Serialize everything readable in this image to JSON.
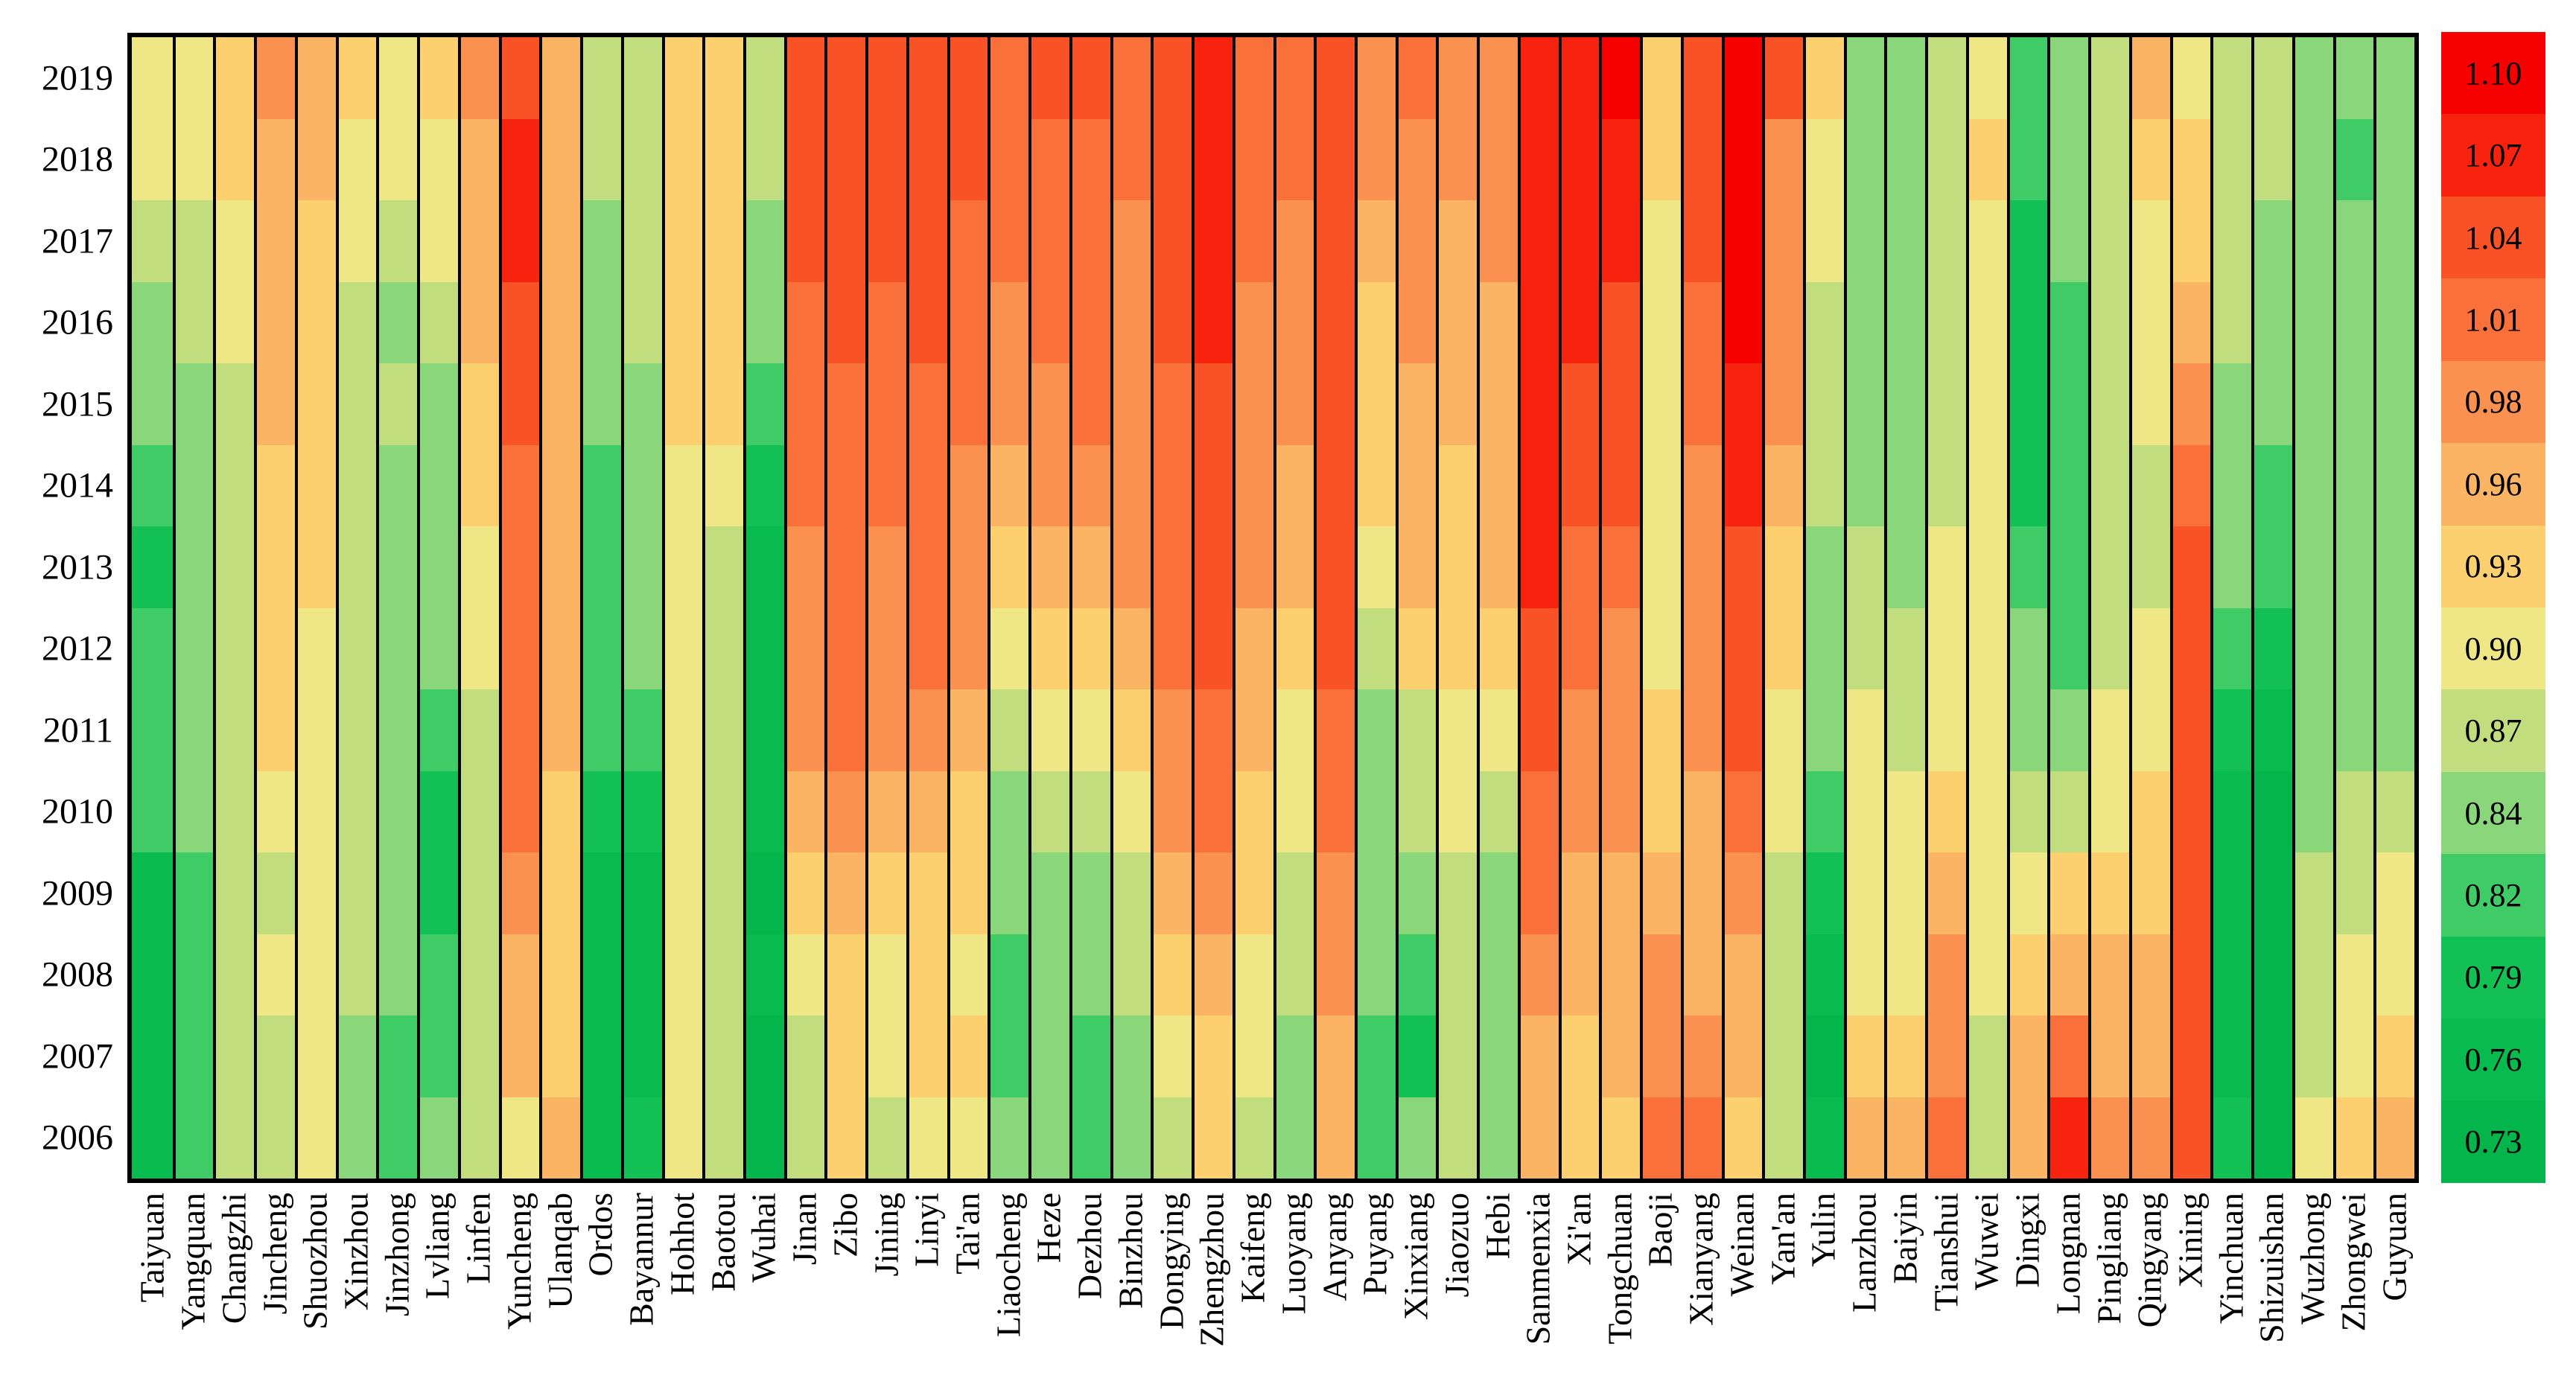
{
  "chart_data": {
    "type": "heatmap",
    "title": "",
    "xlabel": "",
    "ylabel": "",
    "grid_line_color": "#000000",
    "background_color": "#ffffff",
    "legend_position": "right",
    "years_top_to_bottom": [
      "2019",
      "2018",
      "2017",
      "2016",
      "2015",
      "2014",
      "2013",
      "2012",
      "2011",
      "2010",
      "2009",
      "2008",
      "2007",
      "2006"
    ],
    "colorbar": {
      "tick_labels": [
        "1.10",
        "1.07",
        "1.04",
        "1.01",
        "0.98",
        "0.96",
        "0.93",
        "0.90",
        "0.87",
        "0.84",
        "0.82",
        "0.79",
        "0.76",
        "0.73"
      ],
      "values": [
        1.1,
        1.07,
        1.04,
        1.01,
        0.98,
        0.96,
        0.93,
        0.9,
        0.87,
        0.84,
        0.82,
        0.79,
        0.76,
        0.73
      ],
      "colors": [
        "#f60000",
        "#f7230e",
        "#f85226",
        "#f9703a",
        "#fa9150",
        "#fbb464",
        "#fcd06e",
        "#efe786",
        "#c2dd7d",
        "#8ad67b",
        "#3fcb66",
        "#12c054",
        "#08bb4e",
        "#03b54a"
      ]
    },
    "cities": [
      {
        "name": "Taiyuan",
        "values": [
          0.9,
          0.9,
          0.87,
          0.84,
          0.84,
          0.82,
          0.79,
          0.82,
          0.82,
          0.82,
          0.76,
          0.76,
          0.76,
          0.76
        ]
      },
      {
        "name": "Yangquan",
        "values": [
          0.9,
          0.9,
          0.87,
          0.87,
          0.84,
          0.84,
          0.84,
          0.84,
          0.84,
          0.84,
          0.82,
          0.82,
          0.82,
          0.82
        ]
      },
      {
        "name": "Changzhi",
        "values": [
          0.93,
          0.93,
          0.9,
          0.9,
          0.87,
          0.87,
          0.87,
          0.87,
          0.87,
          0.87,
          0.87,
          0.87,
          0.87,
          0.87
        ]
      },
      {
        "name": "Jincheng",
        "values": [
          0.98,
          0.96,
          0.96,
          0.96,
          0.96,
          0.93,
          0.93,
          0.93,
          0.93,
          0.9,
          0.87,
          0.9,
          0.87,
          0.87
        ]
      },
      {
        "name": "Shuozhou",
        "values": [
          0.96,
          0.96,
          0.93,
          0.93,
          0.93,
          0.93,
          0.93,
          0.9,
          0.9,
          0.9,
          0.9,
          0.9,
          0.9,
          0.9
        ]
      },
      {
        "name": "Xinzhou",
        "values": [
          0.93,
          0.9,
          0.9,
          0.87,
          0.87,
          0.87,
          0.87,
          0.87,
          0.87,
          0.87,
          0.87,
          0.87,
          0.84,
          0.84
        ]
      },
      {
        "name": "Jinzhong",
        "values": [
          0.9,
          0.9,
          0.87,
          0.84,
          0.87,
          0.84,
          0.84,
          0.84,
          0.84,
          0.84,
          0.84,
          0.84,
          0.82,
          0.82
        ]
      },
      {
        "name": "Lvliang",
        "values": [
          0.93,
          0.9,
          0.9,
          0.87,
          0.84,
          0.84,
          0.84,
          0.84,
          0.82,
          0.79,
          0.79,
          0.82,
          0.82,
          0.84
        ]
      },
      {
        "name": "Linfen",
        "values": [
          0.98,
          0.96,
          0.96,
          0.96,
          0.93,
          0.93,
          0.9,
          0.9,
          0.87,
          0.87,
          0.87,
          0.87,
          0.87,
          0.87
        ]
      },
      {
        "name": "Yuncheng",
        "values": [
          1.04,
          1.07,
          1.07,
          1.04,
          1.04,
          1.01,
          1.01,
          1.01,
          1.01,
          1.01,
          0.98,
          0.96,
          0.96,
          0.9
        ]
      },
      {
        "name": "Ulanqab",
        "values": [
          0.96,
          0.96,
          0.96,
          0.96,
          0.96,
          0.96,
          0.96,
          0.96,
          0.96,
          0.93,
          0.93,
          0.93,
          0.93,
          0.96
        ]
      },
      {
        "name": "Ordos",
        "values": [
          0.87,
          0.87,
          0.84,
          0.84,
          0.84,
          0.82,
          0.82,
          0.82,
          0.82,
          0.79,
          0.76,
          0.76,
          0.76,
          0.76
        ]
      },
      {
        "name": "Bayannur",
        "values": [
          0.87,
          0.87,
          0.87,
          0.87,
          0.84,
          0.84,
          0.84,
          0.84,
          0.82,
          0.79,
          0.76,
          0.76,
          0.76,
          0.79
        ]
      },
      {
        "name": "Hohhot",
        "values": [
          0.93,
          0.93,
          0.93,
          0.93,
          0.93,
          0.9,
          0.9,
          0.9,
          0.9,
          0.9,
          0.9,
          0.9,
          0.9,
          0.9
        ]
      },
      {
        "name": "Baotou",
        "values": [
          0.93,
          0.93,
          0.93,
          0.93,
          0.93,
          0.9,
          0.87,
          0.87,
          0.87,
          0.87,
          0.87,
          0.87,
          0.87,
          0.87
        ]
      },
      {
        "name": "Wuhai",
        "values": [
          0.87,
          0.87,
          0.84,
          0.84,
          0.82,
          0.79,
          0.76,
          0.76,
          0.76,
          0.76,
          0.73,
          0.76,
          0.73,
          0.73
        ]
      },
      {
        "name": "Jinan",
        "values": [
          1.04,
          1.04,
          1.04,
          1.01,
          1.01,
          1.01,
          0.98,
          0.98,
          0.98,
          0.96,
          0.93,
          0.9,
          0.87,
          0.87
        ]
      },
      {
        "name": "Zibo",
        "values": [
          1.04,
          1.04,
          1.04,
          1.04,
          1.01,
          1.01,
          1.01,
          1.01,
          1.01,
          0.98,
          0.96,
          0.93,
          0.93,
          0.93
        ]
      },
      {
        "name": "Jining",
        "values": [
          1.04,
          1.04,
          1.04,
          1.01,
          1.01,
          1.01,
          0.98,
          0.98,
          0.98,
          0.96,
          0.93,
          0.9,
          0.9,
          0.87
        ]
      },
      {
        "name": "Linyi",
        "values": [
          1.04,
          1.04,
          1.04,
          1.04,
          1.01,
          1.01,
          1.01,
          1.01,
          0.98,
          0.96,
          0.93,
          0.93,
          0.93,
          0.9
        ]
      },
      {
        "name": "Tai'an",
        "values": [
          1.04,
          1.04,
          1.01,
          1.01,
          1.01,
          0.98,
          0.98,
          0.98,
          0.96,
          0.93,
          0.93,
          0.9,
          0.93,
          0.9
        ]
      },
      {
        "name": "Liaocheng",
        "values": [
          1.01,
          1.01,
          1.01,
          0.98,
          0.98,
          0.96,
          0.93,
          0.9,
          0.87,
          0.84,
          0.84,
          0.82,
          0.82,
          0.84
        ]
      },
      {
        "name": "Heze",
        "values": [
          1.04,
          1.01,
          1.01,
          1.01,
          0.98,
          0.98,
          0.96,
          0.93,
          0.9,
          0.87,
          0.84,
          0.84,
          0.84,
          0.84
        ]
      },
      {
        "name": "Dezhou",
        "values": [
          1.04,
          1.01,
          1.01,
          1.01,
          1.01,
          0.98,
          0.96,
          0.93,
          0.9,
          0.87,
          0.84,
          0.84,
          0.82,
          0.82
        ]
      },
      {
        "name": "Binzhou",
        "values": [
          1.01,
          1.01,
          0.98,
          0.98,
          0.98,
          0.98,
          0.98,
          0.96,
          0.93,
          0.9,
          0.87,
          0.87,
          0.84,
          0.84
        ]
      },
      {
        "name": "Dongying",
        "values": [
          1.04,
          1.04,
          1.04,
          1.04,
          1.01,
          1.01,
          1.01,
          1.01,
          0.98,
          0.98,
          0.96,
          0.93,
          0.9,
          0.87
        ]
      },
      {
        "name": "Zhengzhou",
        "values": [
          1.07,
          1.07,
          1.07,
          1.07,
          1.04,
          1.04,
          1.04,
          1.04,
          1.01,
          1.01,
          0.98,
          0.96,
          0.93,
          0.93
        ]
      },
      {
        "name": "Kaifeng",
        "values": [
          1.01,
          1.01,
          1.01,
          0.98,
          0.98,
          0.98,
          0.98,
          0.96,
          0.96,
          0.93,
          0.93,
          0.9,
          0.9,
          0.87
        ]
      },
      {
        "name": "Luoyang",
        "values": [
          1.01,
          1.01,
          0.98,
          0.98,
          0.98,
          0.96,
          0.96,
          0.93,
          0.9,
          0.9,
          0.87,
          0.87,
          0.84,
          0.84
        ]
      },
      {
        "name": "Anyang",
        "values": [
          1.04,
          1.04,
          1.04,
          1.04,
          1.04,
          1.04,
          1.04,
          1.04,
          1.01,
          1.01,
          0.98,
          0.98,
          0.96,
          0.96
        ]
      },
      {
        "name": "Puyang",
        "values": [
          0.98,
          0.98,
          0.96,
          0.93,
          0.93,
          0.93,
          0.9,
          0.87,
          0.84,
          0.84,
          0.84,
          0.84,
          0.82,
          0.82
        ]
      },
      {
        "name": "Xinxiang",
        "values": [
          1.01,
          0.98,
          0.98,
          0.98,
          0.96,
          0.96,
          0.96,
          0.93,
          0.87,
          0.87,
          0.84,
          0.82,
          0.79,
          0.84
        ]
      },
      {
        "name": "Jiaozuo",
        "values": [
          0.98,
          0.98,
          0.96,
          0.96,
          0.96,
          0.93,
          0.93,
          0.93,
          0.9,
          0.9,
          0.87,
          0.87,
          0.87,
          0.87
        ]
      },
      {
        "name": "Hebi",
        "values": [
          0.98,
          0.98,
          0.98,
          0.96,
          0.96,
          0.96,
          0.96,
          0.93,
          0.9,
          0.87,
          0.84,
          0.84,
          0.84,
          0.84
        ]
      },
      {
        "name": "Sanmenxia",
        "values": [
          1.07,
          1.07,
          1.07,
          1.07,
          1.07,
          1.07,
          1.07,
          1.04,
          1.04,
          1.01,
          1.01,
          0.98,
          0.96,
          0.96
        ]
      },
      {
        "name": "Xi'an",
        "values": [
          1.07,
          1.07,
          1.07,
          1.07,
          1.04,
          1.04,
          1.01,
          1.01,
          0.98,
          0.98,
          0.96,
          0.96,
          0.93,
          0.93
        ]
      },
      {
        "name": "Tongchuan",
        "values": [
          1.1,
          1.07,
          1.07,
          1.04,
          1.04,
          1.04,
          1.01,
          0.98,
          0.98,
          0.98,
          0.96,
          0.96,
          0.96,
          0.93
        ]
      },
      {
        "name": "Baoji",
        "values": [
          0.93,
          0.93,
          0.9,
          0.9,
          0.9,
          0.9,
          0.9,
          0.9,
          0.93,
          0.93,
          0.96,
          0.98,
          0.98,
          1.01
        ]
      },
      {
        "name": "Xianyang",
        "values": [
          1.04,
          1.04,
          1.04,
          1.01,
          1.01,
          0.98,
          0.98,
          0.98,
          0.98,
          0.96,
          0.96,
          0.96,
          0.98,
          1.01
        ]
      },
      {
        "name": "Weinan",
        "values": [
          1.1,
          1.1,
          1.1,
          1.1,
          1.07,
          1.07,
          1.04,
          1.04,
          1.04,
          1.01,
          0.98,
          0.96,
          0.96,
          0.93
        ]
      },
      {
        "name": "Yan'an",
        "values": [
          1.04,
          0.98,
          0.98,
          0.98,
          0.98,
          0.96,
          0.93,
          0.93,
          0.9,
          0.9,
          0.87,
          0.87,
          0.87,
          0.87
        ]
      },
      {
        "name": "Yulin",
        "values": [
          0.93,
          0.9,
          0.9,
          0.87,
          0.87,
          0.87,
          0.84,
          0.84,
          0.84,
          0.82,
          0.79,
          0.76,
          0.73,
          0.76
        ]
      },
      {
        "name": "Lanzhou",
        "values": [
          0.84,
          0.84,
          0.84,
          0.84,
          0.84,
          0.84,
          0.87,
          0.87,
          0.9,
          0.9,
          0.9,
          0.9,
          0.93,
          0.96
        ]
      },
      {
        "name": "Baiyin",
        "values": [
          0.84,
          0.84,
          0.84,
          0.84,
          0.84,
          0.84,
          0.84,
          0.87,
          0.87,
          0.9,
          0.9,
          0.9,
          0.93,
          0.96
        ]
      },
      {
        "name": "Tianshui",
        "values": [
          0.87,
          0.87,
          0.87,
          0.87,
          0.87,
          0.87,
          0.9,
          0.9,
          0.9,
          0.93,
          0.96,
          0.98,
          0.98,
          1.01
        ]
      },
      {
        "name": "Wuwei",
        "values": [
          0.9,
          0.93,
          0.9,
          0.9,
          0.9,
          0.9,
          0.9,
          0.9,
          0.9,
          0.9,
          0.9,
          0.9,
          0.87,
          0.87
        ]
      },
      {
        "name": "Dingxi",
        "values": [
          0.82,
          0.82,
          0.79,
          0.79,
          0.79,
          0.79,
          0.82,
          0.84,
          0.84,
          0.87,
          0.9,
          0.93,
          0.96,
          0.96
        ]
      },
      {
        "name": "Longnan",
        "values": [
          0.84,
          0.84,
          0.84,
          0.82,
          0.82,
          0.82,
          0.82,
          0.82,
          0.84,
          0.87,
          0.93,
          0.96,
          1.01,
          1.07
        ]
      },
      {
        "name": "Pingliang",
        "values": [
          0.87,
          0.87,
          0.87,
          0.87,
          0.87,
          0.87,
          0.87,
          0.87,
          0.9,
          0.9,
          0.93,
          0.96,
          0.96,
          0.98
        ]
      },
      {
        "name": "Qingyang",
        "values": [
          0.96,
          0.93,
          0.9,
          0.9,
          0.9,
          0.87,
          0.87,
          0.9,
          0.9,
          0.93,
          0.93,
          0.96,
          0.96,
          0.98
        ]
      },
      {
        "name": "Xining",
        "values": [
          0.9,
          0.93,
          0.93,
          0.96,
          0.98,
          1.01,
          1.04,
          1.04,
          1.04,
          1.04,
          1.04,
          1.04,
          1.04,
          1.04
        ]
      },
      {
        "name": "Yinchuan",
        "values": [
          0.87,
          0.87,
          0.87,
          0.87,
          0.84,
          0.84,
          0.84,
          0.82,
          0.79,
          0.76,
          0.76,
          0.76,
          0.76,
          0.79
        ]
      },
      {
        "name": "Shizuishan",
        "values": [
          0.87,
          0.87,
          0.84,
          0.84,
          0.84,
          0.82,
          0.82,
          0.79,
          0.76,
          0.73,
          0.73,
          0.73,
          0.73,
          0.73
        ]
      },
      {
        "name": "Wuzhong",
        "values": [
          0.84,
          0.84,
          0.84,
          0.84,
          0.84,
          0.84,
          0.84,
          0.84,
          0.84,
          0.84,
          0.87,
          0.87,
          0.87,
          0.9
        ]
      },
      {
        "name": "Zhongwei",
        "values": [
          0.84,
          0.82,
          0.84,
          0.84,
          0.84,
          0.84,
          0.84,
          0.84,
          0.84,
          0.87,
          0.87,
          0.9,
          0.9,
          0.93
        ]
      },
      {
        "name": "Guyuan",
        "values": [
          0.84,
          0.84,
          0.84,
          0.84,
          0.84,
          0.84,
          0.84,
          0.84,
          0.84,
          0.87,
          0.9,
          0.9,
          0.93,
          0.96
        ]
      }
    ]
  }
}
